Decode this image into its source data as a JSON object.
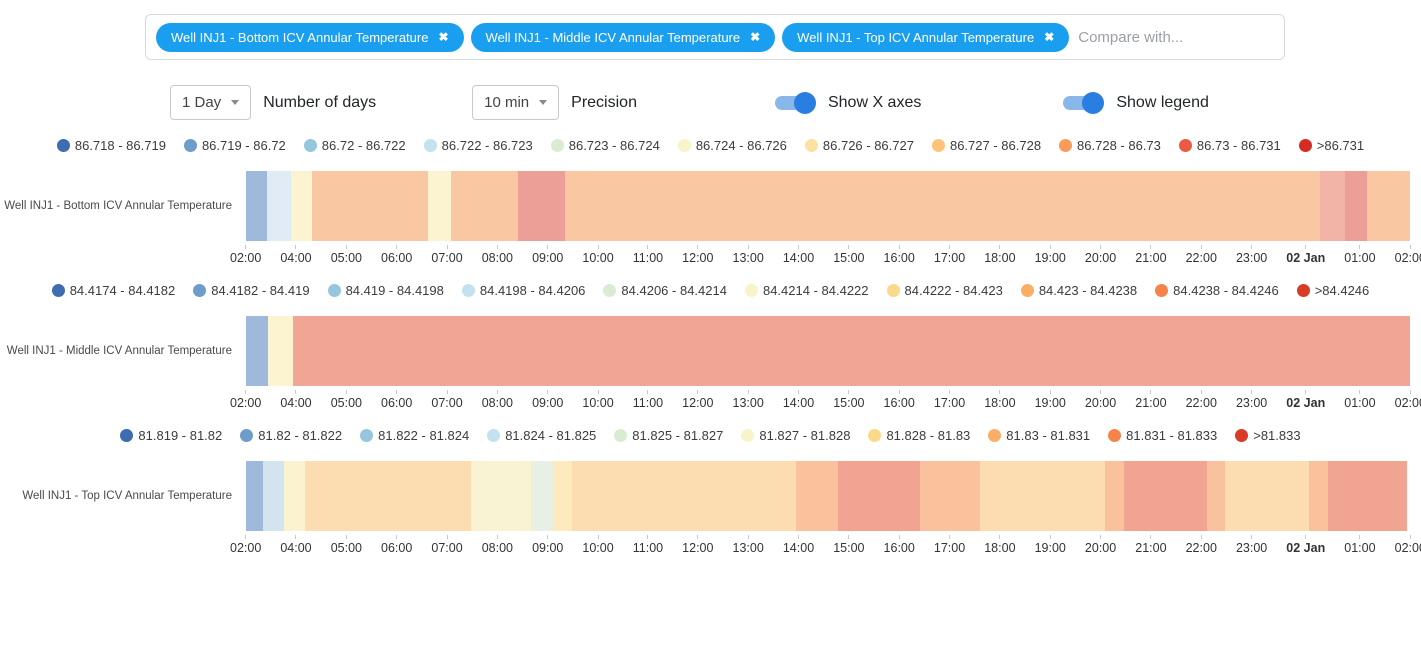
{
  "colors": {
    "chip_blue": "#1a9ff0",
    "toggle_track_on": "#8ab7ea",
    "toggle_knob_on": "#2a7de1"
  },
  "filter_bar": {
    "chips": [
      {
        "label": "Well INJ1 - Bottom ICV Annular Temperature",
        "close_icon": "✖"
      },
      {
        "label": "Well INJ1 - Middle ICV Annular Temperature",
        "close_icon": "✖"
      },
      {
        "label": "Well INJ1 - Top ICV Annular Temperature",
        "close_icon": "✖"
      }
    ],
    "compare_placeholder": "Compare with..."
  },
  "controls": {
    "days_select": {
      "value": "1 Day",
      "label": "Number of days"
    },
    "precision_select": {
      "value": "10 min",
      "label": "Precision"
    },
    "toggles": [
      {
        "label": "Show X axes",
        "state": "on"
      },
      {
        "label": "Show legend",
        "state": "on"
      }
    ]
  },
  "axis": {
    "labels": [
      "02:00",
      "04:00",
      "05:00",
      "06:00",
      "07:00",
      "08:00",
      "09:00",
      "10:00",
      "11:00",
      "12:00",
      "13:00",
      "14:00",
      "15:00",
      "16:00",
      "17:00",
      "18:00",
      "19:00",
      "20:00",
      "21:00",
      "22:00",
      "23:00",
      "02 Jan",
      "01:00",
      "02:00"
    ],
    "bold_label": "02 Jan"
  },
  "chart_data": [
    {
      "type": "heatmap",
      "series": "Well INJ1 - Bottom ICV Annular Temperature",
      "legend": [
        {
          "range": "86.718 - 86.719",
          "color": "#3d6cb0"
        },
        {
          "range": "86.719 - 86.72",
          "color": "#6f9dcb"
        },
        {
          "range": "86.72 - 86.722",
          "color": "#96c5de"
        },
        {
          "range": "86.722 - 86.723",
          "color": "#c3e2ef"
        },
        {
          "range": "86.723 - 86.724",
          "color": "#d9ecd3"
        },
        {
          "range": "86.724 - 86.726",
          "color": "#f8f3c8"
        },
        {
          "range": "86.726 - 86.727",
          "color": "#fce2a0"
        },
        {
          "range": "86.727 - 86.728",
          "color": "#fdc478"
        },
        {
          "range": "86.728 - 86.73",
          "color": "#fa9b5c"
        },
        {
          "range": "86.73 - 86.731",
          "color": "#ea5b40"
        },
        {
          "range": ">86.731",
          "color": "#d62b22"
        }
      ],
      "segments": [
        {
          "start": "02:00",
          "end": "02:30",
          "color": "#9fb9da",
          "width_pct": 1.8
        },
        {
          "start": "02:30",
          "end": "03:00",
          "color": "#e0ebf6",
          "width_pct": 2.1
        },
        {
          "start": "03:00",
          "end": "03:20",
          "color": "#fcf3d1",
          "width_pct": 1.8
        },
        {
          "start": "03:20",
          "end": "05:40",
          "color": "#f9c7a1",
          "width_pct": 9.9
        },
        {
          "start": "05:40",
          "end": "06:10",
          "color": "#fcf3d1",
          "width_pct": 2.0
        },
        {
          "start": "06:10",
          "end": "07:30",
          "color": "#f9c7a1",
          "width_pct": 5.8
        },
        {
          "start": "07:30",
          "end": "08:30",
          "color": "#ec9f97",
          "width_pct": 4.0
        },
        {
          "start": "08:30",
          "end": "23:50",
          "color": "#f9c7a1",
          "width_pct": 64.9
        },
        {
          "start": "23:50",
          "end": "00:20",
          "color": "#f2b4a6",
          "width_pct": 2.1
        },
        {
          "start": "00:20",
          "end": "00:40",
          "color": "#ec9f97",
          "width_pct": 1.9
        },
        {
          "start": "00:40",
          "end": "02:00",
          "color": "#f9c7a1",
          "width_pct": 3.7
        }
      ]
    },
    {
      "type": "heatmap",
      "series": "Well INJ1 - Middle ICV Annular Temperature",
      "legend": [
        {
          "range": "84.4174 - 84.4182",
          "color": "#3d6cb0"
        },
        {
          "range": "84.4182 - 84.419",
          "color": "#6f9dcb"
        },
        {
          "range": "84.419 - 84.4198",
          "color": "#96c5de"
        },
        {
          "range": "84.4198 - 84.4206",
          "color": "#c3e2ef"
        },
        {
          "range": "84.4206 - 84.4214",
          "color": "#d9ecd3"
        },
        {
          "range": "84.4214 - 84.4222",
          "color": "#f8f3c8"
        },
        {
          "range": "84.4222 - 84.423",
          "color": "#fcd98a"
        },
        {
          "range": "84.423 - 84.4238",
          "color": "#fbae65"
        },
        {
          "range": "84.4238 - 84.4246",
          "color": "#f5834a"
        },
        {
          "range": ">84.4246",
          "color": "#da3b26"
        }
      ],
      "segments": [
        {
          "start": "02:00",
          "end": "02:30",
          "color": "#9fb9da",
          "width_pct": 1.9
        },
        {
          "start": "02:30",
          "end": "03:00",
          "color": "#fcf3d1",
          "width_pct": 2.1
        },
        {
          "start": "03:00",
          "end": "02:00",
          "color": "#f0a595",
          "width_pct": 96.0
        }
      ]
    },
    {
      "type": "heatmap",
      "series": "Well INJ1 - Top ICV Annular Temperature",
      "legend": [
        {
          "range": "81.819 - 81.82",
          "color": "#3d6cb0"
        },
        {
          "range": "81.82 - 81.822",
          "color": "#6f9dcb"
        },
        {
          "range": "81.822 - 81.824",
          "color": "#96c5de"
        },
        {
          "range": "81.824 - 81.825",
          "color": "#c3e2ef"
        },
        {
          "range": "81.825 - 81.827",
          "color": "#d9ecd3"
        },
        {
          "range": "81.827 - 81.828",
          "color": "#f8f3c8"
        },
        {
          "range": "81.828 - 81.83",
          "color": "#fcd98a"
        },
        {
          "range": "81.83 - 81.831",
          "color": "#fbae65"
        },
        {
          "range": "81.831 - 81.833",
          "color": "#f5834a"
        },
        {
          "range": ">81.833",
          "color": "#da3b26"
        }
      ],
      "segments": [
        {
          "start": "02:00",
          "end": "02:20",
          "color": "#9fb9da",
          "width_pct": 1.5
        },
        {
          "start": "02:20",
          "end": "02:50",
          "color": "#d4e3f0",
          "width_pct": 1.8
        },
        {
          "start": "02:50",
          "end": "03:10",
          "color": "#fbf2cf",
          "width_pct": 1.8
        },
        {
          "start": "03:10",
          "end": "06:30",
          "color": "#fcdcb1",
          "width_pct": 14.2
        },
        {
          "start": "06:30",
          "end": "07:50",
          "color": "#faf3d3",
          "width_pct": 5.2
        },
        {
          "start": "07:50",
          "end": "08:10",
          "color": "#e8f0e5",
          "width_pct": 1.9
        },
        {
          "start": "08:10",
          "end": "08:40",
          "color": "#fdeabf",
          "width_pct": 1.6
        },
        {
          "start": "08:40",
          "end": "13:10",
          "color": "#fcdcb1",
          "width_pct": 19.3
        },
        {
          "start": "13:10",
          "end": "14:00",
          "color": "#f9c29c",
          "width_pct": 3.6
        },
        {
          "start": "14:00",
          "end": "15:40",
          "color": "#f1a491",
          "width_pct": 7.0
        },
        {
          "start": "15:40",
          "end": "16:50",
          "color": "#f9c29c",
          "width_pct": 5.2
        },
        {
          "start": "16:50",
          "end": "19:30",
          "color": "#fcdcb1",
          "width_pct": 10.7
        },
        {
          "start": "19:30",
          "end": "19:50",
          "color": "#f9c29c",
          "width_pct": 1.6
        },
        {
          "start": "19:50",
          "end": "21:30",
          "color": "#f1a491",
          "width_pct": 7.2
        },
        {
          "start": "21:30",
          "end": "21:50",
          "color": "#f9c29c",
          "width_pct": 1.5
        },
        {
          "start": "21:50",
          "end": "23:40",
          "color": "#fcdcb1",
          "width_pct": 7.2
        },
        {
          "start": "23:40",
          "end": "00:00",
          "color": "#f9c29c",
          "width_pct": 1.7
        },
        {
          "start": "00:00",
          "end": "02:00",
          "color": "#f1a491",
          "width_pct": 6.8
        }
      ]
    }
  ]
}
